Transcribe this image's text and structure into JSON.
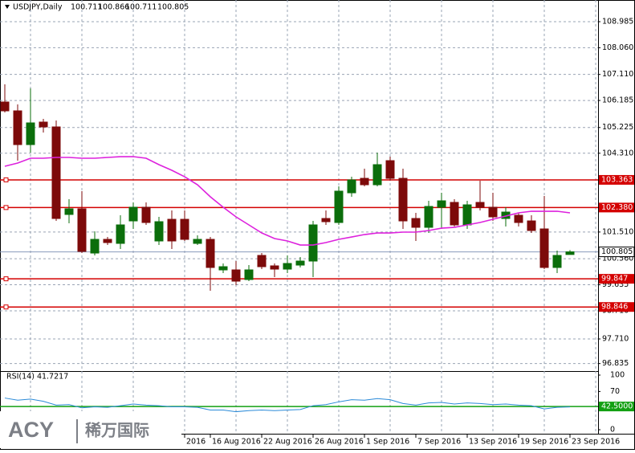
{
  "chart_data": {
    "type": "candlestick",
    "title": "USDJPY,Daily",
    "categories": [
      null,
      null,
      null,
      null,
      null,
      null,
      null,
      null,
      null,
      null,
      null,
      null,
      null,
      null,
      "2016",
      null,
      "16 Aug 2016",
      null,
      null,
      null,
      "22 Aug 2016",
      null,
      null,
      null,
      "26 Aug 2016",
      null,
      null,
      null,
      "1 Sep 2016",
      null,
      null,
      null,
      "7 Sep 2016",
      null,
      null,
      null,
      "13 Sep 2016",
      null,
      null,
      null,
      "19 Sep 2016",
      null,
      null,
      null,
      "23 Sep 2016"
    ],
    "open": [
      106.13,
      105.816,
      104.617,
      105.417,
      105.245,
      102.134,
      102.334,
      100.763,
      101.249,
      101.106,
      101.905,
      102.391,
      101.192,
      101.962,
      101.962,
      101.106,
      101.249,
      100.164,
      100.164,
      99.821,
      100.678,
      100.307,
      100.192,
      100.335,
      100.478,
      101.991,
      101.848,
      102.904,
      103.418,
      103.19,
      104.046,
      103.418,
      101.991,
      101.677,
      102.391,
      102.562,
      101.763,
      102.562,
      102.391,
      101.991,
      102.105,
      101.905,
      101.62,
      100.25,
      100.711
    ],
    "high": [
      106.758,
      106.045,
      106.616,
      105.531,
      105.474,
      102.676,
      102.962,
      101.534,
      101.334,
      102.105,
      102.562,
      102.562,
      102.048,
      102.276,
      102.276,
      101.391,
      101.334,
      100.392,
      100.478,
      100.335,
      100.763,
      100.392,
      100.678,
      100.621,
      101.905,
      102.276,
      103.133,
      103.475,
      103.761,
      104.332,
      104.189,
      103.761,
      102.191,
      102.619,
      102.904,
      102.676,
      102.619,
      103.333,
      102.904,
      102.391,
      102.191,
      102.105,
      102.79,
      100.849,
      100.866
    ],
    "low": [
      105.759,
      104.046,
      104.332,
      105.045,
      101.905,
      101.82,
      100.763,
      100.678,
      101.049,
      100.906,
      101.62,
      101.763,
      101.049,
      100.906,
      101.192,
      101.049,
      99.422,
      100.05,
      99.622,
      99.764,
      100.192,
      99.907,
      100.05,
      100.25,
      99.907,
      101.763,
      101.763,
      102.762,
      103.133,
      103.133,
      103.333,
      101.62,
      101.192,
      101.477,
      101.62,
      101.706,
      101.62,
      102.276,
      101.905,
      101.706,
      101.706,
      101.477,
      100.192,
      100.05,
      100.711
    ],
    "close": [
      105.816,
      104.617,
      105.388,
      105.245,
      101.991,
      102.334,
      100.821,
      101.249,
      101.135,
      101.763,
      102.391,
      101.848,
      101.877,
      101.192,
      101.249,
      101.249,
      100.25,
      100.278,
      99.764,
      100.164,
      100.278,
      100.192,
      100.392,
      100.478,
      101.763,
      101.877,
      102.962,
      103.361,
      103.19,
      103.904,
      103.418,
      101.905,
      101.677,
      102.419,
      102.619,
      101.763,
      102.476,
      102.391,
      102.048,
      102.219,
      101.848,
      101.563,
      100.25,
      100.678,
      100.805
    ],
    "up_color": "#0b6e0b",
    "down_color": "#7d0a0a",
    "moving_average": {
      "color": "#dd22dd",
      "values": [
        103.847,
        103.961,
        104.132,
        104.132,
        104.161,
        104.161,
        104.132,
        104.132,
        104.161,
        104.189,
        104.189,
        104.132,
        103.904,
        103.704,
        103.475,
        103.19,
        102.762,
        102.391,
        102.048,
        101.763,
        101.477,
        101.277,
        101.192,
        101.049,
        101.049,
        101.135,
        101.249,
        101.334,
        101.42,
        101.477,
        101.477,
        101.506,
        101.506,
        101.563,
        101.648,
        101.677,
        101.763,
        101.848,
        101.962,
        102.077,
        102.191,
        102.248,
        102.248,
        102.248,
        102.191
      ]
    },
    "levels": [
      {
        "value": 103.363,
        "label": "103.363"
      },
      {
        "value": 102.38,
        "label": "102.380"
      },
      {
        "value": 99.847,
        "label": "99.847"
      },
      {
        "value": 98.846,
        "label": "98.846"
      }
    ],
    "level_color": "#d40000",
    "ylim": [
      96.568,
      109.356
    ],
    "yticks": [
      108.985,
      {
        "value": 108.06,
        "label": "108.060"
      },
      {
        "value": 107.11,
        "label": "107.110"
      },
      106.185,
      105.225,
      {
        "value": 104.31,
        "label": "104.310"
      },
      {
        "value": 101.51,
        "label": "101.510"
      },
      {
        "value": 100.56,
        "label": "100.560"
      },
      99.635,
      {
        "value": 98.71,
        "label": "98.710"
      },
      {
        "value": 97.71,
        "label": "97.710"
      },
      96.835
    ],
    "grid": true,
    "rsi": {
      "label": "RSI(14) 41.7217",
      "color": "#2a8ad8",
      "values": [
        58,
        54,
        56,
        52,
        45,
        46,
        40,
        42,
        41,
        44,
        47,
        45,
        44,
        42,
        42,
        41,
        36,
        36,
        33,
        35,
        36,
        35,
        36,
        37,
        44,
        46,
        51,
        55,
        54,
        57,
        55,
        48,
        45,
        49,
        50,
        47,
        49,
        48,
        46,
        47,
        45,
        44,
        38,
        41,
        41.7217
      ],
      "ylim": [
        0,
        100
      ],
      "yticks": [
        0,
        70,
        100
      ],
      "level": {
        "value": 42.5,
        "label": "42.5000"
      },
      "level_color": "#13a013"
    }
  },
  "logo": {
    "text": "ACY",
    "text_cn": "稀万国际"
  }
}
